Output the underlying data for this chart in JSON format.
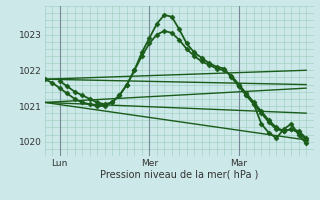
{
  "background_color": "#cce8e8",
  "grid_color": "#99ccbb",
  "line_color": "#1a5c1a",
  "title": "Pression niveau de la mer( hPa )",
  "ylabel_ticks": [
    1020,
    1021,
    1022,
    1023
  ],
  "xlim": [
    0,
    36
  ],
  "ylim": [
    1019.6,
    1023.8
  ],
  "x_day_labels": [
    {
      "label": "Lun",
      "x": 2
    },
    {
      "label": "Mer",
      "x": 14
    },
    {
      "label": "Mar",
      "x": 26
    }
  ],
  "series": [
    {
      "x": [
        0,
        1,
        2,
        3,
        4,
        5,
        6,
        7,
        8,
        9,
        10,
        11,
        12,
        13,
        14,
        15,
        16,
        17,
        18,
        19,
        20,
        21,
        22,
        23,
        24,
        25,
        26,
        27,
        28,
        29,
        30,
        31,
        32,
        33,
        34,
        35
      ],
      "y": [
        1021.75,
        1021.65,
        1021.5,
        1021.35,
        1021.2,
        1021.1,
        1021.05,
        1021.0,
        1021.0,
        1021.1,
        1021.3,
        1021.6,
        1022.0,
        1022.5,
        1022.9,
        1023.3,
        1023.55,
        1023.5,
        1023.15,
        1022.75,
        1022.5,
        1022.35,
        1022.2,
        1022.1,
        1022.05,
        1021.8,
        1021.55,
        1021.3,
        1021.05,
        1020.8,
        1020.55,
        1020.35,
        1020.3,
        1020.35,
        1020.25,
        1020.05
      ],
      "marker": true,
      "lw": 1.3
    },
    {
      "x": [
        2,
        3,
        4,
        5,
        6,
        7,
        8,
        9,
        10,
        11,
        12,
        13,
        14,
        15,
        16,
        17,
        18,
        19,
        20,
        21,
        22,
        23,
        24,
        25,
        26,
        27,
        28,
        29,
        30,
        31,
        32,
        33,
        34,
        35
      ],
      "y": [
        1021.7,
        1021.55,
        1021.4,
        1021.3,
        1021.2,
        1021.1,
        1021.05,
        1021.1,
        1021.3,
        1021.6,
        1022.0,
        1022.4,
        1022.75,
        1023.0,
        1023.1,
        1023.05,
        1022.85,
        1022.6,
        1022.4,
        1022.25,
        1022.15,
        1022.05,
        1022.0,
        1021.85,
        1021.6,
        1021.35,
        1021.1,
        1020.85,
        1020.6,
        1020.4,
        1020.3,
        1020.35,
        1020.3,
        1020.1
      ],
      "marker": true,
      "lw": 1.3
    },
    {
      "x": [
        0,
        35
      ],
      "y": [
        1021.75,
        1022.0
      ],
      "marker": false,
      "lw": 1.0
    },
    {
      "x": [
        0,
        35
      ],
      "y": [
        1021.75,
        1021.6
      ],
      "marker": false,
      "lw": 1.0
    },
    {
      "x": [
        0,
        35
      ],
      "y": [
        1021.1,
        1021.5
      ],
      "marker": false,
      "lw": 1.0
    },
    {
      "x": [
        0,
        35
      ],
      "y": [
        1021.1,
        1020.8
      ],
      "marker": false,
      "lw": 1.0
    },
    {
      "x": [
        0,
        35
      ],
      "y": [
        1021.1,
        1020.05
      ],
      "marker": false,
      "lw": 1.0
    },
    {
      "x": [
        26,
        27,
        28,
        29,
        30,
        31,
        32,
        33,
        34,
        35
      ],
      "y": [
        1021.55,
        1021.3,
        1021.05,
        1020.5,
        1020.25,
        1020.1,
        1020.35,
        1020.5,
        1020.2,
        1019.95
      ],
      "marker": true,
      "lw": 1.3
    }
  ]
}
